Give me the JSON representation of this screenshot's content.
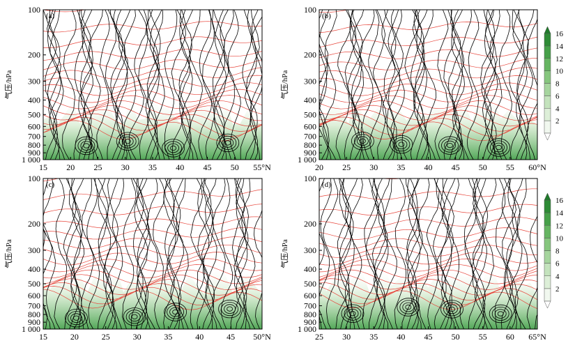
{
  "chart_data": [
    {
      "type": "streamline-contour",
      "panel_label": "(a)",
      "ylabel": "气压/hPa",
      "y_ticks": [
        "100",
        "200",
        "300",
        "400",
        "500",
        "600",
        "700",
        "800",
        "900",
        "1 000"
      ],
      "x_ticks": [
        "15",
        "20",
        "25",
        "30",
        "35",
        "40",
        "45",
        "50",
        "55°N"
      ],
      "xlim": [
        15,
        55
      ],
      "y_scale": "log-pressure",
      "ylim": [
        1000,
        100
      ],
      "contour_color": "#e8463c",
      "streamline_color": "#000000"
    },
    {
      "type": "streamline-contour",
      "panel_label": "(b)",
      "ylabel": "气压/hPa",
      "y_ticks": [
        "100",
        "200",
        "300",
        "400",
        "500",
        "600",
        "700",
        "800",
        "900",
        "1 000"
      ],
      "x_ticks": [
        "20",
        "25",
        "30",
        "35",
        "40",
        "45",
        "50",
        "55",
        "60°N"
      ],
      "xlim": [
        20,
        60
      ],
      "y_scale": "log-pressure",
      "ylim": [
        1000,
        100
      ],
      "colorbar": {
        "ticks": [
          "2",
          "4",
          "6",
          "8",
          "10",
          "12",
          "14",
          "16"
        ]
      }
    },
    {
      "type": "streamline-contour",
      "panel_label": "(c)",
      "ylabel": "气压/hPa",
      "y_ticks": [
        "100",
        "200",
        "300",
        "400",
        "500",
        "600",
        "700",
        "800",
        "900",
        "1 000"
      ],
      "x_ticks": [
        "15",
        "20",
        "25",
        "30",
        "35",
        "40",
        "45",
        "50°N"
      ],
      "xlim": [
        12,
        52
      ],
      "y_scale": "log-pressure",
      "ylim": [
        1000,
        100
      ]
    },
    {
      "type": "streamline-contour",
      "panel_label": "(d)",
      "ylabel": "气压/hPa",
      "y_ticks": [
        "100",
        "200",
        "300",
        "400",
        "500",
        "600",
        "700",
        "800",
        "900",
        "1 000"
      ],
      "x_ticks": [
        "25",
        "30",
        "35",
        "40",
        "45",
        "50",
        "55",
        "60",
        "65°N"
      ],
      "xlim": [
        25,
        65
      ],
      "y_scale": "log-pressure",
      "ylim": [
        1000,
        100
      ],
      "colorbar": {
        "ticks": [
          "2",
          "4",
          "6",
          "8",
          "10",
          "12",
          "14",
          "16"
        ]
      }
    }
  ]
}
